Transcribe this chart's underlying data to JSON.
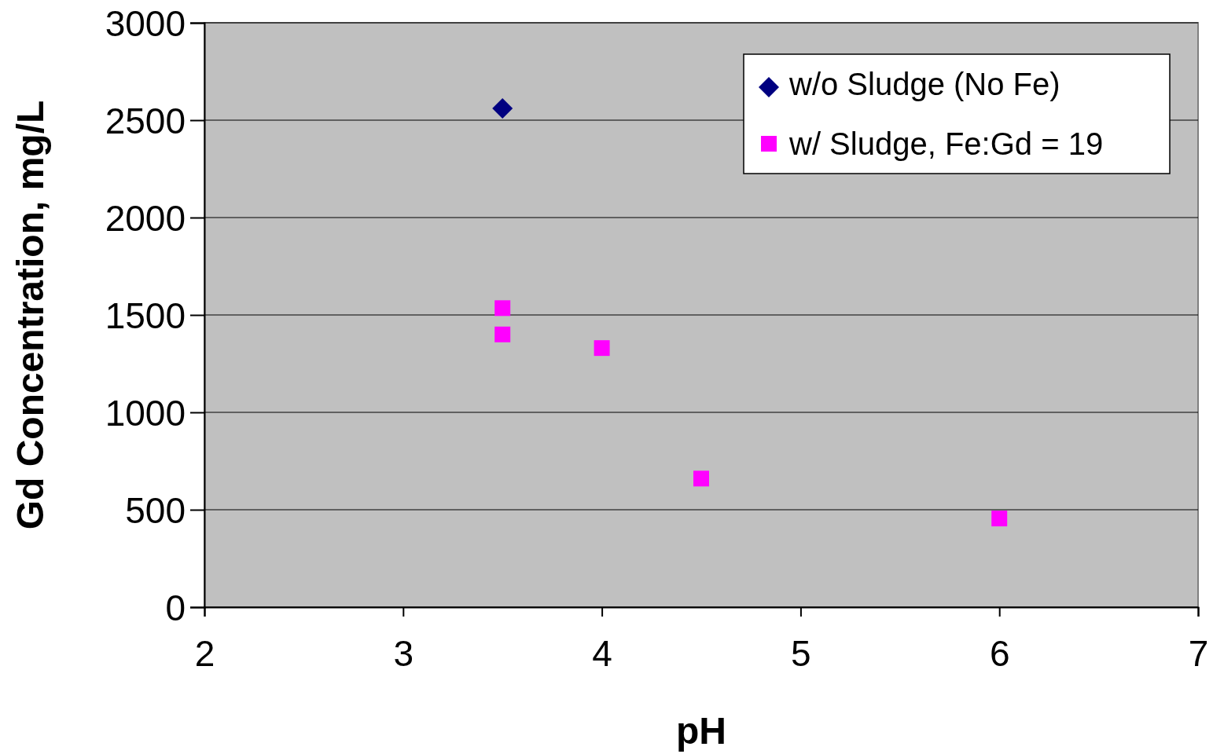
{
  "chart_data": {
    "type": "scatter",
    "xlabel": "pH",
    "ylabel": "Gd Concentration, mg/L",
    "xlim": [
      2,
      7
    ],
    "xticks": [
      2,
      3,
      4,
      5,
      6,
      7
    ],
    "ylim": [
      0,
      3000
    ],
    "yticks": [
      0,
      500,
      1000,
      1500,
      2000,
      2500,
      3000
    ],
    "grid": "y",
    "legend": "top right",
    "series": [
      {
        "name": "w/o Sludge (No Fe)",
        "color": "#000080",
        "marker": "diamond",
        "x": [
          3.5
        ],
        "values": [
          2560
        ]
      },
      {
        "name": "w/ Sludge, Fe:Gd = 19",
        "color": "#ff00ff",
        "marker": "square",
        "x": [
          3.5,
          3.5,
          4,
          4.5,
          6
        ],
        "values": [
          1535,
          1400,
          1330,
          660,
          455
        ]
      }
    ]
  }
}
